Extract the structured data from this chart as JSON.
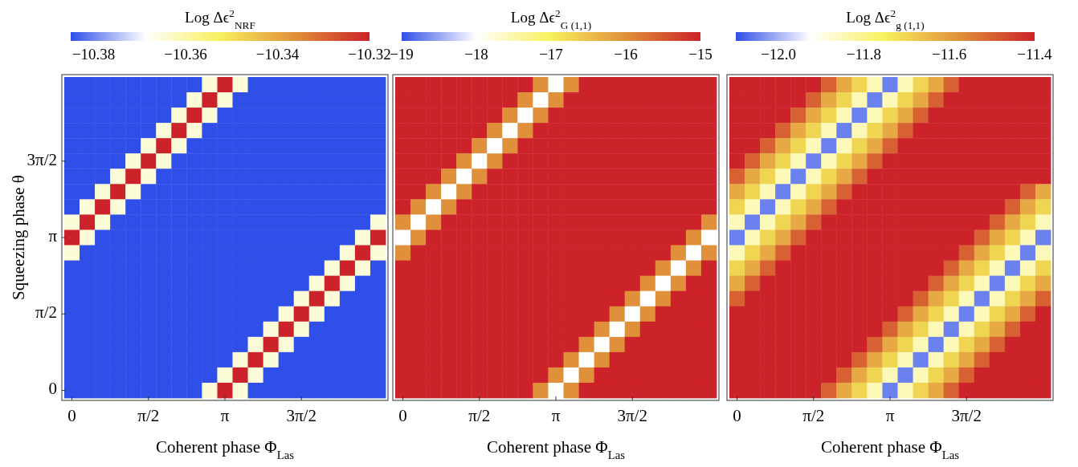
{
  "chart_data": [
    {
      "type": "heatmap",
      "clabel": "Log Δϵ$^{2}$$_{NRF}$",
      "xlabel": "Coherent phase Φ$_{Las}$",
      "ylabel": "Squeezing phase θ",
      "categories": [
        "0",
        null,
        null,
        null,
        null,
        "π/2",
        null,
        null,
        null,
        null,
        "π",
        null,
        null,
        null,
        null,
        "3π/2",
        null,
        null,
        null,
        null,
        null
      ],
      "y_categories": [
        null,
        null,
        null,
        null,
        null,
        "3π/2",
        null,
        null,
        null,
        null,
        "π",
        null,
        null,
        null,
        null,
        "π/2",
        null,
        null,
        null,
        null,
        "0"
      ],
      "clim": [
        -10.385,
        -10.32
      ],
      "cticks": [
        {
          "value": -10.38,
          "label": "−10.38"
        },
        {
          "value": -10.36,
          "label": "−10.36"
        },
        {
          "value": -10.34,
          "label": "−10.34"
        },
        {
          "value": -10.32,
          "label": "−10.32"
        }
      ],
      "cells": [
        [
          -10.385,
          -10.385,
          -10.385,
          -10.385,
          -10.385,
          -10.385,
          -10.385,
          -10.385,
          -10.385,
          -10.365,
          -10.32,
          -10.365,
          -10.385,
          -10.385,
          -10.385,
          -10.385,
          -10.385,
          -10.385,
          -10.385,
          -10.385,
          -10.385
        ],
        [
          -10.385,
          -10.385,
          -10.385,
          -10.385,
          -10.385,
          -10.385,
          -10.385,
          -10.385,
          -10.365,
          -10.32,
          -10.365,
          -10.385,
          -10.385,
          -10.385,
          -10.385,
          -10.385,
          -10.385,
          -10.385,
          -10.385,
          -10.385,
          -10.385
        ],
        [
          -10.385,
          -10.385,
          -10.385,
          -10.385,
          -10.385,
          -10.385,
          -10.385,
          -10.365,
          -10.32,
          -10.365,
          -10.385,
          -10.385,
          -10.385,
          -10.385,
          -10.385,
          -10.385,
          -10.385,
          -10.385,
          -10.385,
          -10.385,
          -10.385
        ],
        [
          -10.385,
          -10.385,
          -10.385,
          -10.385,
          -10.385,
          -10.385,
          -10.365,
          -10.32,
          -10.365,
          -10.385,
          -10.385,
          -10.385,
          -10.385,
          -10.385,
          -10.385,
          -10.385,
          -10.385,
          -10.385,
          -10.385,
          -10.385,
          -10.385
        ],
        [
          -10.385,
          -10.385,
          -10.385,
          -10.385,
          -10.385,
          -10.365,
          -10.32,
          -10.365,
          -10.385,
          -10.385,
          -10.385,
          -10.385,
          -10.385,
          -10.385,
          -10.385,
          -10.385,
          -10.385,
          -10.385,
          -10.385,
          -10.385,
          -10.385
        ],
        [
          -10.385,
          -10.385,
          -10.385,
          -10.385,
          -10.365,
          -10.32,
          -10.365,
          -10.385,
          -10.385,
          -10.385,
          -10.385,
          -10.385,
          -10.385,
          -10.385,
          -10.385,
          -10.385,
          -10.385,
          -10.385,
          -10.385,
          -10.385,
          -10.385
        ],
        [
          -10.385,
          -10.385,
          -10.385,
          -10.365,
          -10.32,
          -10.365,
          -10.385,
          -10.385,
          -10.385,
          -10.385,
          -10.385,
          -10.385,
          -10.385,
          -10.385,
          -10.385,
          -10.385,
          -10.385,
          -10.385,
          -10.385,
          -10.385,
          -10.385
        ],
        [
          -10.385,
          -10.385,
          -10.365,
          -10.32,
          -10.365,
          -10.385,
          -10.385,
          -10.385,
          -10.385,
          -10.385,
          -10.385,
          -10.385,
          -10.385,
          -10.385,
          -10.385,
          -10.385,
          -10.385,
          -10.385,
          -10.385,
          -10.385,
          -10.385
        ],
        [
          -10.385,
          -10.365,
          -10.32,
          -10.365,
          -10.385,
          -10.385,
          -10.385,
          -10.385,
          -10.385,
          -10.385,
          -10.385,
          -10.385,
          -10.385,
          -10.385,
          -10.385,
          -10.385,
          -10.385,
          -10.385,
          -10.385,
          -10.385,
          -10.385
        ],
        [
          -10.365,
          -10.32,
          -10.365,
          -10.385,
          -10.385,
          -10.385,
          -10.385,
          -10.385,
          -10.385,
          -10.385,
          -10.385,
          -10.385,
          -10.385,
          -10.385,
          -10.385,
          -10.385,
          -10.385,
          -10.385,
          -10.385,
          -10.385,
          -10.365
        ],
        [
          -10.32,
          -10.365,
          -10.385,
          -10.385,
          -10.385,
          -10.385,
          -10.385,
          -10.385,
          -10.385,
          -10.385,
          -10.385,
          -10.385,
          -10.385,
          -10.385,
          -10.385,
          -10.385,
          -10.385,
          -10.385,
          -10.385,
          -10.365,
          -10.32
        ],
        [
          -10.365,
          -10.385,
          -10.385,
          -10.385,
          -10.385,
          -10.385,
          -10.385,
          -10.385,
          -10.385,
          -10.385,
          -10.385,
          -10.385,
          -10.385,
          -10.385,
          -10.385,
          -10.385,
          -10.385,
          -10.385,
          -10.365,
          -10.32,
          -10.365
        ],
        [
          -10.385,
          -10.385,
          -10.385,
          -10.385,
          -10.385,
          -10.385,
          -10.385,
          -10.385,
          -10.385,
          -10.385,
          -10.385,
          -10.385,
          -10.385,
          -10.385,
          -10.385,
          -10.385,
          -10.385,
          -10.365,
          -10.32,
          -10.365,
          -10.385
        ],
        [
          -10.385,
          -10.385,
          -10.385,
          -10.385,
          -10.385,
          -10.385,
          -10.385,
          -10.385,
          -10.385,
          -10.385,
          -10.385,
          -10.385,
          -10.385,
          -10.385,
          -10.385,
          -10.385,
          -10.365,
          -10.32,
          -10.365,
          -10.385,
          -10.385
        ],
        [
          -10.385,
          -10.385,
          -10.385,
          -10.385,
          -10.385,
          -10.385,
          -10.385,
          -10.385,
          -10.385,
          -10.385,
          -10.385,
          -10.385,
          -10.385,
          -10.385,
          -10.385,
          -10.365,
          -10.32,
          -10.365,
          -10.385,
          -10.385,
          -10.385
        ],
        [
          -10.385,
          -10.385,
          -10.385,
          -10.385,
          -10.385,
          -10.385,
          -10.385,
          -10.385,
          -10.385,
          -10.385,
          -10.385,
          -10.385,
          -10.385,
          -10.385,
          -10.365,
          -10.32,
          -10.365,
          -10.385,
          -10.385,
          -10.385,
          -10.385
        ],
        [
          -10.385,
          -10.385,
          -10.385,
          -10.385,
          -10.385,
          -10.385,
          -10.385,
          -10.385,
          -10.385,
          -10.385,
          -10.385,
          -10.385,
          -10.385,
          -10.365,
          -10.32,
          -10.365,
          -10.385,
          -10.385,
          -10.385,
          -10.385,
          -10.385
        ],
        [
          -10.385,
          -10.385,
          -10.385,
          -10.385,
          -10.385,
          -10.385,
          -10.385,
          -10.385,
          -10.385,
          -10.385,
          -10.385,
          -10.385,
          -10.365,
          -10.32,
          -10.365,
          -10.385,
          -10.385,
          -10.385,
          -10.385,
          -10.385,
          -10.385
        ],
        [
          -10.385,
          -10.385,
          -10.385,
          -10.385,
          -10.385,
          -10.385,
          -10.385,
          -10.385,
          -10.385,
          -10.385,
          -10.385,
          -10.365,
          -10.32,
          -10.365,
          -10.385,
          -10.385,
          -10.385,
          -10.385,
          -10.385,
          -10.385,
          -10.385
        ],
        [
          -10.385,
          -10.385,
          -10.385,
          -10.385,
          -10.385,
          -10.385,
          -10.385,
          -10.385,
          -10.385,
          -10.385,
          -10.365,
          -10.32,
          -10.365,
          -10.385,
          -10.385,
          -10.385,
          -10.385,
          -10.385,
          -10.385,
          -10.385,
          -10.385
        ],
        [
          -10.385,
          -10.385,
          -10.385,
          -10.385,
          -10.385,
          -10.385,
          -10.385,
          -10.385,
          -10.385,
          -10.365,
          -10.32,
          -10.365,
          -10.385,
          -10.385,
          -10.385,
          -10.385,
          -10.385,
          -10.385,
          -10.385,
          -10.385,
          -10.385
        ]
      ]
    },
    {
      "type": "heatmap",
      "clabel": "Log Δϵ$^{2}$$_{G (1,1)}$",
      "xlabel": "Coherent phase Φ$_{Las}$",
      "categories": [
        "0",
        null,
        null,
        null,
        null,
        "π/2",
        null,
        null,
        null,
        null,
        "π",
        null,
        null,
        null,
        null,
        "3π/2",
        null,
        null,
        null,
        null,
        null
      ],
      "y_categories": [
        null,
        null,
        null,
        null,
        null,
        null,
        null,
        null,
        null,
        null,
        null,
        null,
        null,
        null,
        null,
        null,
        null,
        null,
        null,
        null,
        null
      ],
      "clim": [
        -19,
        -15
      ],
      "cticks": [
        {
          "value": -19,
          "label": "−19"
        },
        {
          "value": -18,
          "label": "−18"
        },
        {
          "value": -17,
          "label": "−17"
        },
        {
          "value": -16,
          "label": "−16"
        },
        {
          "value": -15,
          "label": "−15"
        }
      ],
      "cells": [
        [
          -15,
          -15,
          -15,
          -15,
          -15,
          -15,
          -15,
          -15,
          -15,
          -16,
          -18,
          -16,
          -15,
          -15,
          -15,
          -15,
          -15,
          -15,
          -15,
          -15,
          -15
        ],
        [
          -15,
          -15,
          -15,
          -15,
          -15,
          -15,
          -15,
          -15,
          -16,
          -18,
          -16,
          -15,
          -15,
          -15,
          -15,
          -15,
          -15,
          -15,
          -15,
          -15,
          -15
        ],
        [
          -15,
          -15,
          -15,
          -15,
          -15,
          -15,
          -15,
          -16,
          -18,
          -16,
          -15,
          -15,
          -15,
          -15,
          -15,
          -15,
          -15,
          -15,
          -15,
          -15,
          -15
        ],
        [
          -15,
          -15,
          -15,
          -15,
          -15,
          -15,
          -16,
          -18,
          -16,
          -15,
          -15,
          -15,
          -15,
          -15,
          -15,
          -15,
          -15,
          -15,
          -15,
          -15,
          -15
        ],
        [
          -15,
          -15,
          -15,
          -15,
          -15,
          -16,
          -18,
          -16,
          -15,
          -15,
          -15,
          -15,
          -15,
          -15,
          -15,
          -15,
          -15,
          -15,
          -15,
          -15,
          -15
        ],
        [
          -15,
          -15,
          -15,
          -15,
          -16,
          -18,
          -16,
          -15,
          -15,
          -15,
          -15,
          -15,
          -15,
          -15,
          -15,
          -15,
          -15,
          -15,
          -15,
          -15,
          -15
        ],
        [
          -15,
          -15,
          -15,
          -16,
          -18,
          -16,
          -15,
          -15,
          -15,
          -15,
          -15,
          -15,
          -15,
          -15,
          -15,
          -15,
          -15,
          -15,
          -15,
          -15,
          -15
        ],
        [
          -15,
          -15,
          -16,
          -18,
          -16,
          -15,
          -15,
          -15,
          -15,
          -15,
          -15,
          -15,
          -15,
          -15,
          -15,
          -15,
          -15,
          -15,
          -15,
          -15,
          -15
        ],
        [
          -15,
          -16,
          -18,
          -16,
          -15,
          -15,
          -15,
          -15,
          -15,
          -15,
          -15,
          -15,
          -15,
          -15,
          -15,
          -15,
          -15,
          -15,
          -15,
          -15,
          -15
        ],
        [
          -16,
          -18,
          -16,
          -15,
          -15,
          -15,
          -15,
          -15,
          -15,
          -15,
          -15,
          -15,
          -15,
          -15,
          -15,
          -15,
          -15,
          -15,
          -15,
          -15,
          -16
        ],
        [
          -18,
          -16,
          -15,
          -15,
          -15,
          -15,
          -15,
          -15,
          -15,
          -15,
          -15,
          -15,
          -15,
          -15,
          -15,
          -15,
          -15,
          -15,
          -15,
          -16,
          -18
        ],
        [
          -16,
          -15,
          -15,
          -15,
          -15,
          -15,
          -15,
          -15,
          -15,
          -15,
          -15,
          -15,
          -15,
          -15,
          -15,
          -15,
          -15,
          -15,
          -16,
          -18,
          -16
        ],
        [
          -15,
          -15,
          -15,
          -15,
          -15,
          -15,
          -15,
          -15,
          -15,
          -15,
          -15,
          -15,
          -15,
          -15,
          -15,
          -15,
          -15,
          -16,
          -18,
          -16,
          -15
        ],
        [
          -15,
          -15,
          -15,
          -15,
          -15,
          -15,
          -15,
          -15,
          -15,
          -15,
          -15,
          -15,
          -15,
          -15,
          -15,
          -15,
          -16,
          -18,
          -16,
          -15,
          -15
        ],
        [
          -15,
          -15,
          -15,
          -15,
          -15,
          -15,
          -15,
          -15,
          -15,
          -15,
          -15,
          -15,
          -15,
          -15,
          -15,
          -16,
          -18,
          -16,
          -15,
          -15,
          -15
        ],
        [
          -15,
          -15,
          -15,
          -15,
          -15,
          -15,
          -15,
          -15,
          -15,
          -15,
          -15,
          -15,
          -15,
          -15,
          -16,
          -18,
          -16,
          -15,
          -15,
          -15,
          -15
        ],
        [
          -15,
          -15,
          -15,
          -15,
          -15,
          -15,
          -15,
          -15,
          -15,
          -15,
          -15,
          -15,
          -15,
          -16,
          -18,
          -16,
          -15,
          -15,
          -15,
          -15,
          -15
        ],
        [
          -15,
          -15,
          -15,
          -15,
          -15,
          -15,
          -15,
          -15,
          -15,
          -15,
          -15,
          -15,
          -16,
          -18,
          -16,
          -15,
          -15,
          -15,
          -15,
          -15,
          -15
        ],
        [
          -15,
          -15,
          -15,
          -15,
          -15,
          -15,
          -15,
          -15,
          -15,
          -15,
          -15,
          -16,
          -18,
          -16,
          -15,
          -15,
          -15,
          -15,
          -15,
          -15,
          -15
        ],
        [
          -15,
          -15,
          -15,
          -15,
          -15,
          -15,
          -15,
          -15,
          -15,
          -15,
          -16,
          -18,
          -16,
          -15,
          -15,
          -15,
          -15,
          -15,
          -15,
          -15,
          -15
        ],
        [
          -15,
          -15,
          -15,
          -15,
          -15,
          -15,
          -15,
          -15,
          -15,
          -16,
          -18,
          -16,
          -15,
          -15,
          -15,
          -15,
          -15,
          -15,
          -15,
          -15,
          -15
        ]
      ]
    },
    {
      "type": "heatmap",
      "clabel": "Log Δϵ$^{2}$$_{g (1,1)}$",
      "xlabel": "Coherent phase Φ$_{Las}$",
      "categories": [
        "0",
        null,
        null,
        null,
        null,
        "π/2",
        null,
        null,
        null,
        null,
        "π",
        null,
        null,
        null,
        null,
        "3π/2",
        null,
        null,
        null,
        null,
        null
      ],
      "y_categories": [
        null,
        null,
        null,
        null,
        null,
        null,
        null,
        null,
        null,
        null,
        null,
        null,
        null,
        null,
        null,
        null,
        null,
        null,
        null,
        null,
        null
      ],
      "clim": [
        -12.1,
        -11.4
      ],
      "cticks": [
        {
          "value": -12.0,
          "label": "−12.0"
        },
        {
          "value": -11.8,
          "label": "−11.8"
        },
        {
          "value": -11.6,
          "label": "−11.6"
        },
        {
          "value": -11.4,
          "label": "−11.4"
        }
      ],
      "cells": [
        [
          -11.4,
          -11.4,
          -11.4,
          -11.4,
          -11.4,
          -11.4,
          -11.5,
          -11.62,
          -11.7,
          -11.85,
          -12.05,
          -11.85,
          -11.7,
          -11.62,
          -11.5,
          -11.4,
          -11.4,
          -11.4,
          -11.4,
          -11.4,
          -11.4
        ],
        [
          -11.4,
          -11.4,
          -11.4,
          -11.4,
          -11.4,
          -11.5,
          -11.62,
          -11.7,
          -11.85,
          -12.05,
          -11.85,
          -11.7,
          -11.62,
          -11.5,
          -11.4,
          -11.4,
          -11.4,
          -11.4,
          -11.4,
          -11.4,
          -11.4
        ],
        [
          -11.4,
          -11.4,
          -11.4,
          -11.4,
          -11.5,
          -11.62,
          -11.7,
          -11.85,
          -12.05,
          -11.85,
          -11.7,
          -11.62,
          -11.5,
          -11.4,
          -11.4,
          -11.4,
          -11.4,
          -11.4,
          -11.4,
          -11.4,
          -11.4
        ],
        [
          -11.4,
          -11.4,
          -11.4,
          -11.5,
          -11.62,
          -11.7,
          -11.85,
          -12.05,
          -11.85,
          -11.7,
          -11.62,
          -11.5,
          -11.4,
          -11.4,
          -11.4,
          -11.4,
          -11.4,
          -11.4,
          -11.4,
          -11.4,
          -11.4
        ],
        [
          -11.4,
          -11.4,
          -11.5,
          -11.62,
          -11.7,
          -11.85,
          -12.05,
          -11.85,
          -11.7,
          -11.62,
          -11.5,
          -11.4,
          -11.4,
          -11.4,
          -11.4,
          -11.4,
          -11.4,
          -11.4,
          -11.4,
          -11.4,
          -11.4
        ],
        [
          -11.4,
          -11.5,
          -11.62,
          -11.7,
          -11.85,
          -12.05,
          -11.85,
          -11.7,
          -11.62,
          -11.5,
          -11.4,
          -11.4,
          -11.4,
          -11.4,
          -11.4,
          -11.4,
          -11.4,
          -11.4,
          -11.4,
          -11.4,
          -11.4
        ],
        [
          -11.5,
          -11.62,
          -11.7,
          -11.85,
          -12.05,
          -11.85,
          -11.7,
          -11.62,
          -11.5,
          -11.4,
          -11.4,
          -11.4,
          -11.4,
          -11.4,
          -11.4,
          -11.4,
          -11.4,
          -11.4,
          -11.4,
          -11.4,
          -11.4
        ],
        [
          -11.62,
          -11.7,
          -11.85,
          -12.05,
          -11.85,
          -11.7,
          -11.62,
          -11.5,
          -11.4,
          -11.4,
          -11.4,
          -11.4,
          -11.4,
          -11.4,
          -11.4,
          -11.4,
          -11.4,
          -11.4,
          -11.4,
          -11.5,
          -11.62
        ],
        [
          -11.7,
          -11.85,
          -12.05,
          -11.85,
          -11.7,
          -11.62,
          -11.5,
          -11.4,
          -11.4,
          -11.4,
          -11.4,
          -11.4,
          -11.4,
          -11.4,
          -11.4,
          -11.4,
          -11.4,
          -11.4,
          -11.5,
          -11.62,
          -11.7
        ],
        [
          -11.85,
          -12.05,
          -11.85,
          -11.7,
          -11.62,
          -11.5,
          -11.4,
          -11.4,
          -11.4,
          -11.4,
          -11.4,
          -11.4,
          -11.4,
          -11.4,
          -11.4,
          -11.4,
          -11.4,
          -11.5,
          -11.62,
          -11.7,
          -11.85
        ],
        [
          -12.05,
          -11.85,
          -11.7,
          -11.62,
          -11.5,
          -11.4,
          -11.4,
          -11.4,
          -11.4,
          -11.4,
          -11.4,
          -11.4,
          -11.4,
          -11.4,
          -11.4,
          -11.4,
          -11.5,
          -11.62,
          -11.7,
          -11.85,
          -12.05
        ],
        [
          -11.85,
          -11.7,
          -11.62,
          -11.5,
          -11.4,
          -11.4,
          -11.4,
          -11.4,
          -11.4,
          -11.4,
          -11.4,
          -11.4,
          -11.4,
          -11.4,
          -11.4,
          -11.5,
          -11.62,
          -11.7,
          -11.85,
          -12.05,
          -11.85
        ],
        [
          -11.7,
          -11.62,
          -11.5,
          -11.4,
          -11.4,
          -11.4,
          -11.4,
          -11.4,
          -11.4,
          -11.4,
          -11.4,
          -11.4,
          -11.4,
          -11.4,
          -11.5,
          -11.62,
          -11.7,
          -11.85,
          -12.05,
          -11.85,
          -11.7
        ],
        [
          -11.62,
          -11.5,
          -11.4,
          -11.4,
          -11.4,
          -11.4,
          -11.4,
          -11.4,
          -11.4,
          -11.4,
          -11.4,
          -11.4,
          -11.4,
          -11.5,
          -11.62,
          -11.7,
          -11.85,
          -12.05,
          -11.85,
          -11.7,
          -11.62
        ],
        [
          -11.5,
          -11.4,
          -11.4,
          -11.4,
          -11.4,
          -11.4,
          -11.4,
          -11.4,
          -11.4,
          -11.4,
          -11.4,
          -11.4,
          -11.5,
          -11.62,
          -11.7,
          -11.85,
          -12.05,
          -11.85,
          -11.7,
          -11.62,
          -11.5
        ],
        [
          -11.4,
          -11.4,
          -11.4,
          -11.4,
          -11.4,
          -11.4,
          -11.4,
          -11.4,
          -11.4,
          -11.4,
          -11.4,
          -11.5,
          -11.62,
          -11.7,
          -11.85,
          -12.05,
          -11.85,
          -11.7,
          -11.62,
          -11.5,
          -11.4
        ],
        [
          -11.4,
          -11.4,
          -11.4,
          -11.4,
          -11.4,
          -11.4,
          -11.4,
          -11.4,
          -11.4,
          -11.4,
          -11.5,
          -11.62,
          -11.7,
          -11.85,
          -12.05,
          -11.85,
          -11.7,
          -11.62,
          -11.5,
          -11.4,
          -11.4
        ],
        [
          -11.4,
          -11.4,
          -11.4,
          -11.4,
          -11.4,
          -11.4,
          -11.4,
          -11.4,
          -11.4,
          -11.5,
          -11.62,
          -11.7,
          -11.85,
          -12.05,
          -11.85,
          -11.7,
          -11.62,
          -11.5,
          -11.4,
          -11.4,
          -11.4
        ],
        [
          -11.4,
          -11.4,
          -11.4,
          -11.4,
          -11.4,
          -11.4,
          -11.4,
          -11.4,
          -11.5,
          -11.62,
          -11.7,
          -11.85,
          -12.05,
          -11.85,
          -11.7,
          -11.62,
          -11.5,
          -11.4,
          -11.4,
          -11.4,
          -11.4
        ],
        [
          -11.4,
          -11.4,
          -11.4,
          -11.4,
          -11.4,
          -11.4,
          -11.4,
          -11.5,
          -11.62,
          -11.7,
          -11.85,
          -12.05,
          -11.85,
          -11.7,
          -11.62,
          -11.5,
          -11.4,
          -11.4,
          -11.4,
          -11.4,
          -11.4
        ],
        [
          -11.4,
          -11.4,
          -11.4,
          -11.4,
          -11.4,
          -11.4,
          -11.5,
          -11.62,
          -11.7,
          -11.85,
          -12.05,
          -11.85,
          -11.7,
          -11.62,
          -11.5,
          -11.4,
          -11.4,
          -11.4,
          -11.4,
          -11.4,
          -11.4
        ]
      ]
    }
  ]
}
